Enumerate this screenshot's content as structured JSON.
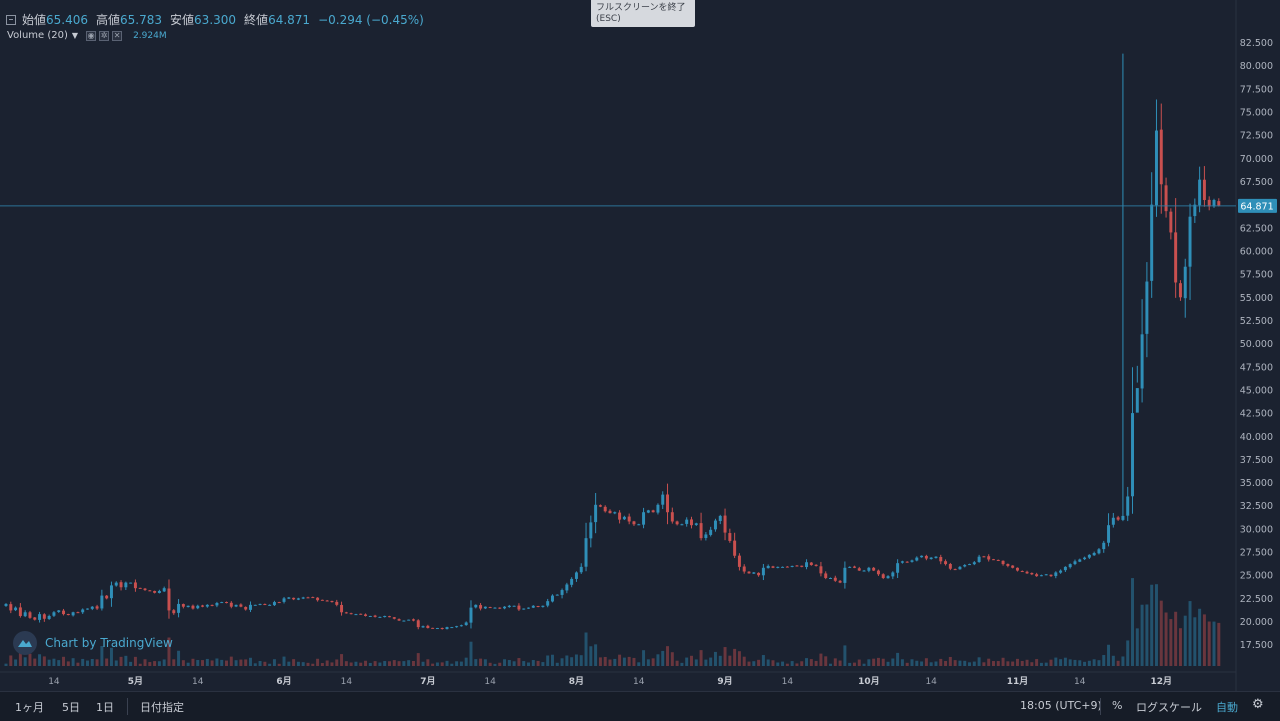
{
  "legend": {
    "open_label": "始値",
    "open": "65.406",
    "high_label": "高値",
    "high": "65.783",
    "low_label": "安値",
    "low": "63.300",
    "close_label": "終値",
    "close": "64.871",
    "change": "−0.294 (−0.45%)"
  },
  "volume": {
    "title": "Volume (20)",
    "value": "2.924M"
  },
  "tooltip": {
    "line1": "フルスクリーンを終了",
    "line2": "(ESC)"
  },
  "watermark": "Chart by TradingView",
  "price_tag": "64.871",
  "toolbar": {
    "range_1m": "1ヶ月",
    "range_5d": "5日",
    "range_1d": "1日",
    "date_range": "日付指定",
    "time": "18:05 (UTC+9)",
    "percent": "%",
    "log_scale": "ログスケール",
    "auto": "自動"
  },
  "colors": {
    "background": "#1b2230",
    "up": "#2f8fb8",
    "down": "#c9504f",
    "accent": "#4aa9cf",
    "text": "#c7cbd3"
  },
  "chart_data": {
    "type": "candlestick",
    "y_ticks": [
      "82.500",
      "80.000",
      "77.500",
      "75.000",
      "72.500",
      "70.000",
      "67.500",
      "65.000",
      "62.500",
      "60.000",
      "57.500",
      "55.000",
      "52.500",
      "50.000",
      "47.500",
      "45.000",
      "42.500",
      "40.000",
      "37.500",
      "35.000",
      "32.500",
      "30.000",
      "27.500",
      "25.000",
      "22.500",
      "20.000",
      "17.500"
    ],
    "ylim": [
      15.2,
      84.5
    ],
    "x_ticks": [
      {
        "label": "14",
        "day": 10
      },
      {
        "label": "5月",
        "day": 27
      },
      {
        "label": "14",
        "day": 40
      },
      {
        "label": "6月",
        "day": 58
      },
      {
        "label": "14",
        "day": 71
      },
      {
        "label": "7月",
        "day": 88
      },
      {
        "label": "14",
        "day": 101
      },
      {
        "label": "8月",
        "day": 119
      },
      {
        "label": "14",
        "day": 132
      },
      {
        "label": "9月",
        "day": 150
      },
      {
        "label": "14",
        "day": 163
      },
      {
        "label": "10月",
        "day": 180
      },
      {
        "label": "14",
        "day": 193
      },
      {
        "label": "11月",
        "day": 211
      },
      {
        "label": "14",
        "day": 224
      },
      {
        "label": "12月",
        "day": 241
      }
    ],
    "x_range": [
      0,
      252
    ],
    "current_price": 64.871,
    "closes": [
      21.9,
      21.2,
      21.5,
      20.6,
      21.0,
      20.4,
      20.2,
      20.8,
      20.3,
      20.6,
      21.0,
      21.2,
      20.8,
      20.7,
      21.0,
      21.0,
      21.3,
      21.4,
      21.6,
      21.4,
      22.8,
      22.5,
      23.9,
      24.2,
      23.7,
      24.2,
      24.2,
      23.6,
      23.6,
      23.4,
      23.3,
      23.1,
      23.3,
      23.6,
      21.2,
      20.9,
      21.9,
      21.6,
      21.7,
      21.4,
      21.7,
      21.6,
      21.8,
      21.7,
      22.0,
      22.1,
      22.0,
      21.6,
      21.8,
      21.6,
      21.3,
      21.8,
      21.8,
      21.9,
      21.8,
      21.8,
      22.1,
      22.1,
      22.5,
      22.6,
      22.4,
      22.5,
      22.6,
      22.6,
      22.6,
      22.3,
      22.3,
      22.2,
      22.1,
      21.8,
      21.0,
      20.9,
      20.8,
      20.8,
      20.8,
      20.6,
      20.6,
      20.5,
      20.5,
      20.6,
      20.5,
      20.3,
      20.1,
      20.1,
      20.2,
      20.1,
      19.4,
      19.5,
      19.3,
      19.3,
      19.3,
      19.2,
      19.4,
      19.4,
      19.5,
      19.6,
      19.9,
      21.5,
      21.8,
      21.4,
      21.6,
      21.5,
      21.5,
      21.4,
      21.6,
      21.7,
      21.7,
      21.3,
      21.4,
      21.5,
      21.7,
      21.6,
      21.7,
      22.2,
      22.8,
      22.9,
      23.4,
      24.0,
      24.6,
      25.3,
      25.9,
      29.0,
      30.7,
      32.6,
      32.4,
      31.9,
      31.7,
      31.8,
      31.0,
      31.3,
      30.8,
      30.5,
      30.5,
      31.8,
      32.0,
      31.8,
      32.6,
      33.7,
      31.8,
      30.8,
      30.5,
      30.5,
      31.0,
      30.4,
      30.6,
      29.0,
      29.4,
      29.9,
      30.9,
      31.4,
      29.6,
      28.7,
      27.1,
      25.9,
      25.4,
      25.2,
      25.3,
      25.0,
      25.8,
      26.0,
      25.8,
      25.9,
      25.9,
      25.9,
      26.0,
      26.0,
      25.9,
      26.4,
      26.1,
      26.0,
      25.2,
      24.7,
      24.7,
      24.4,
      24.2,
      25.8,
      25.9,
      25.8,
      25.5,
      25.5,
      25.8,
      25.5,
      25.1,
      24.7,
      24.9,
      25.3,
      26.3,
      26.5,
      26.4,
      26.6,
      26.9,
      27.1,
      26.8,
      26.9,
      27.0,
      26.5,
      26.2,
      25.7,
      25.6,
      25.9,
      26.1,
      26.2,
      26.4,
      27.0,
      27.0,
      26.7,
      26.7,
      26.6,
      26.2,
      26.0,
      25.8,
      25.5,
      25.4,
      25.2,
      25.1,
      24.9,
      25.0,
      25.1,
      24.9,
      25.3,
      25.5,
      25.9,
      26.2,
      26.5,
      26.7,
      26.9,
      27.2,
      27.4,
      27.8,
      28.5,
      30.4,
      31.2,
      31.0,
      31.4,
      33.5,
      42.5,
      45.2,
      51.0,
      56.7,
      65.0,
      73.0,
      67.2,
      64.3,
      62.0,
      56.6,
      55.0,
      58.3,
      63.7,
      65.0,
      67.7,
      65.5,
      64.8,
      65.5,
      64.9
    ]
  }
}
